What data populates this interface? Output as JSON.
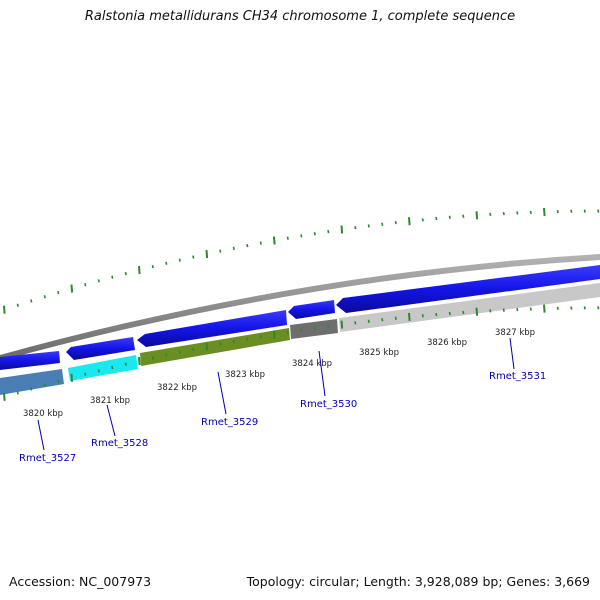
{
  "title": "Ralstonia metallidurans CH34 chromosome 1, complete sequence",
  "footer": {
    "accession": "Accession: NC_007973",
    "summary": "Topology: circular; Length: 3,928,089 bp; Genes: 3,669"
  },
  "colors": {
    "forward_gene": "#1414e6",
    "backbone": "#8c8c8c",
    "ticks": "#2a8a2a",
    "label_text": "#0000b4",
    "rmet_3527": "#4a7fb5",
    "rmet_3528": "#19e8ef",
    "rmet_3529": "#6b8e23",
    "rmet_3530": "#6e6e6e",
    "rmet_3531": "#c8c8c8"
  },
  "kbp_labels": [
    "3820 kbp",
    "3821 kbp",
    "3822 kbp",
    "3823 kbp",
    "3824 kbp",
    "3825 kbp",
    "3826 kbp",
    "3827 kbp"
  ],
  "genes": [
    {
      "name": "Rmet_3527"
    },
    {
      "name": "Rmet_3528"
    },
    {
      "name": "Rmet_3529"
    },
    {
      "name": "Rmet_3530"
    },
    {
      "name": "Rmet_3531"
    }
  ]
}
